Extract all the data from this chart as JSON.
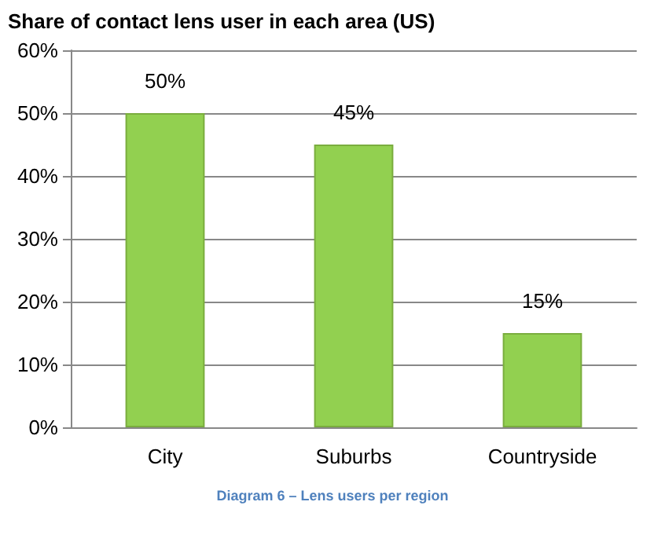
{
  "chart_data": {
    "type": "bar",
    "title": "Share of contact lens user in each area (US)",
    "categories": [
      "City",
      "Suburbs",
      "Countryside"
    ],
    "values": [
      50,
      45,
      15
    ],
    "value_labels": [
      "50%",
      "45%",
      "15%"
    ],
    "color": "#92d050",
    "ylim": [
      0,
      60
    ],
    "yticks": [
      {
        "value": 0,
        "label": "0%"
      },
      {
        "value": 10,
        "label": "10%"
      },
      {
        "value": 20,
        "label": "20%"
      },
      {
        "value": 30,
        "label": "30%"
      },
      {
        "value": 40,
        "label": "40%"
      },
      {
        "value": 50,
        "label": "50%"
      },
      {
        "value": 60,
        "label": "60%"
      }
    ],
    "grid": "y",
    "annotations": [
      "Diagram 6 – Lens users per region"
    ]
  }
}
